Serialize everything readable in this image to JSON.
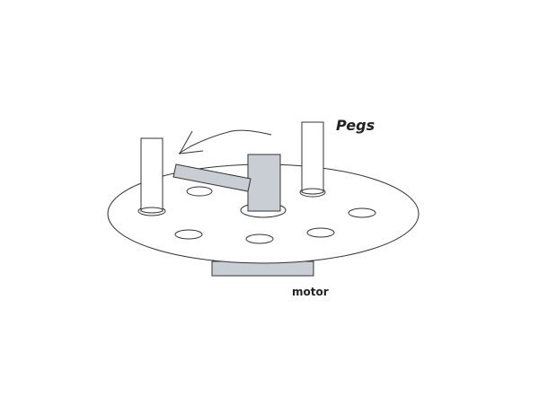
{
  "labels": {
    "pegs": "Pegs",
    "motor": "motor"
  },
  "colors": {
    "background": "#ffffff",
    "line": "#333333",
    "part_fill": "#c8ced4",
    "disc_fill": "#ffffff"
  },
  "parts": {
    "disc": "rotating-disc",
    "hole_count": 7,
    "peg_count": 2,
    "motor": "motor-block",
    "arm": "pivot-arm",
    "hub": "center-hub",
    "arrow": "rotation-arrow"
  }
}
